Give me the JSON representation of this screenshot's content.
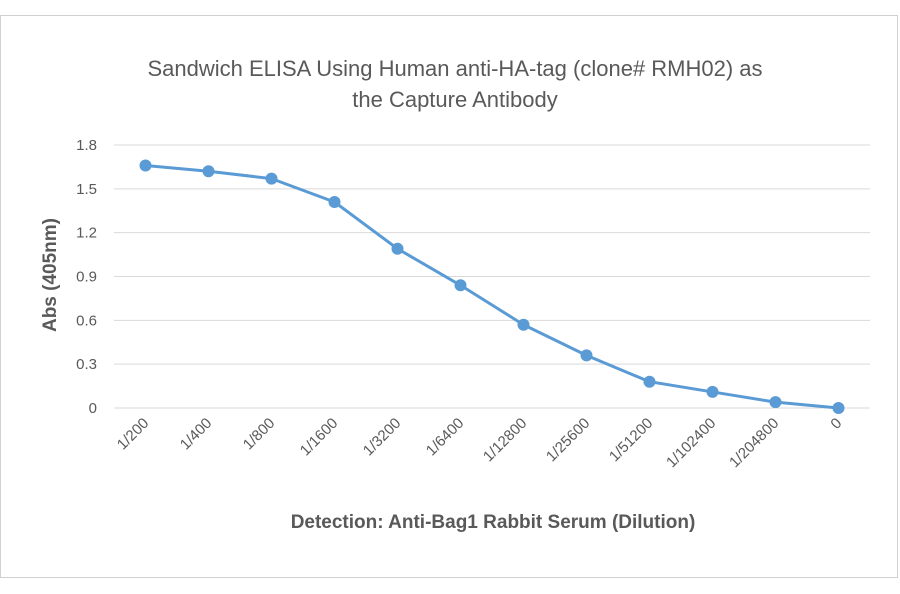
{
  "chart_data": {
    "type": "line",
    "title_lines": [
      "Sandwich ELISA Using Human anti-HA-tag (clone# RMH02) as",
      "the Capture Antibody"
    ],
    "xlabel": "Detection: Anti-Bag1 Rabbit Serum (Dilution)",
    "ylabel": "Abs (405nm)",
    "ylim": [
      0,
      1.8
    ],
    "yticks": [
      "0",
      "0.3",
      "0.6",
      "0.9",
      "1.2",
      "1.5",
      "1.8"
    ],
    "categories": [
      "1/200",
      "1/400",
      "1/800",
      "1/1600",
      "1/3200",
      "1/6400",
      "1/12800",
      "1/25600",
      "1/51200",
      "1/102400",
      "1/204800",
      "0"
    ],
    "series": [
      {
        "values": [
          1.66,
          1.62,
          1.57,
          1.41,
          1.09,
          0.84,
          0.57,
          0.36,
          0.18,
          0.11,
          0.04,
          0.0
        ]
      }
    ],
    "grid": true,
    "line_color": "#5b9bd5"
  }
}
